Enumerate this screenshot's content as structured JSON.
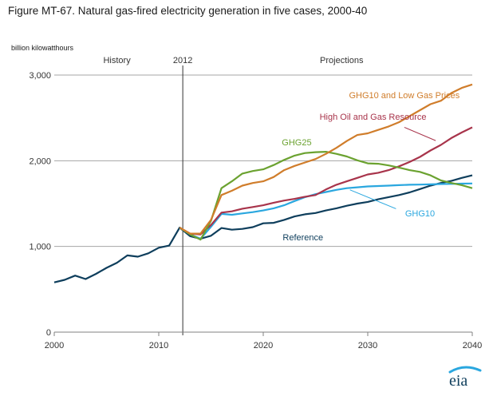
{
  "chart_data": {
    "type": "line",
    "title": "Figure MT-67. Natural  gas-fired electricity generation in  five cases, 2000-40",
    "ylabel": "billion kilowatthours",
    "xlabel": "",
    "xlim": [
      2000,
      2040
    ],
    "ylim": [
      0,
      3000
    ],
    "x_ticks": [
      2000,
      2010,
      2020,
      2030,
      2040
    ],
    "y_ticks": [
      0,
      1000,
      2000,
      3000
    ],
    "y_tick_labels": [
      "0",
      "1,000",
      "2,000",
      "3,000"
    ],
    "grid": "horizontal",
    "annotations": {
      "history": "History",
      "divider_year": "2012",
      "divider_x": 2012.3,
      "projections": "Projections"
    },
    "series": [
      {
        "name": "Reference",
        "color": "#0e3e5c",
        "x": [
          2000,
          2001,
          2002,
          2003,
          2004,
          2005,
          2006,
          2007,
          2008,
          2009,
          2010,
          2011,
          2012,
          2013,
          2014,
          2015,
          2016,
          2017,
          2018,
          2019,
          2020,
          2021,
          2022,
          2023,
          2024,
          2025,
          2026,
          2027,
          2028,
          2029,
          2030,
          2031,
          2032,
          2033,
          2034,
          2035,
          2036,
          2037,
          2038,
          2039,
          2040
        ],
        "values": [
          580,
          610,
          660,
          620,
          680,
          750,
          810,
          895,
          880,
          920,
          985,
          1010,
          1220,
          1120,
          1090,
          1125,
          1215,
          1195,
          1205,
          1225,
          1270,
          1275,
          1310,
          1350,
          1375,
          1390,
          1420,
          1445,
          1475,
          1500,
          1520,
          1550,
          1575,
          1600,
          1630,
          1670,
          1710,
          1740,
          1765,
          1800,
          1830
        ]
      },
      {
        "name": "GHG10",
        "color": "#2aa7df",
        "x": [
          2012,
          2013,
          2014,
          2015,
          2016,
          2017,
          2018,
          2019,
          2020,
          2021,
          2022,
          2023,
          2024,
          2025,
          2026,
          2027,
          2028,
          2029,
          2030,
          2031,
          2032,
          2033,
          2034,
          2035,
          2036,
          2037,
          2038,
          2039,
          2040
        ],
        "values": [
          1220,
          1140,
          1090,
          1230,
          1380,
          1370,
          1385,
          1400,
          1420,
          1445,
          1480,
          1530,
          1575,
          1610,
          1635,
          1660,
          1680,
          1690,
          1700,
          1705,
          1710,
          1715,
          1720,
          1722,
          1725,
          1728,
          1730,
          1733,
          1735
        ]
      },
      {
        "name": "High Oil and Gas Resource",
        "color": "#a8344b",
        "x": [
          2012,
          2013,
          2014,
          2015,
          2016,
          2017,
          2018,
          2019,
          2020,
          2021,
          2022,
          2023,
          2024,
          2025,
          2026,
          2027,
          2028,
          2029,
          2030,
          2031,
          2032,
          2033,
          2034,
          2035,
          2036,
          2037,
          2038,
          2039,
          2040
        ],
        "values": [
          1220,
          1150,
          1140,
          1250,
          1395,
          1410,
          1440,
          1460,
          1480,
          1510,
          1535,
          1555,
          1580,
          1600,
          1665,
          1720,
          1760,
          1800,
          1840,
          1860,
          1890,
          1935,
          1985,
          2045,
          2120,
          2185,
          2265,
          2330,
          2390
        ]
      },
      {
        "name": "GHG25",
        "color": "#6ba230",
        "x": [
          2012,
          2013,
          2014,
          2015,
          2016,
          2017,
          2018,
          2019,
          2020,
          2021,
          2022,
          2023,
          2024,
          2025,
          2026,
          2027,
          2028,
          2029,
          2030,
          2031,
          2032,
          2033,
          2034,
          2035,
          2036,
          2037,
          2038,
          2039,
          2040
        ],
        "values": [
          1220,
          1140,
          1080,
          1300,
          1680,
          1760,
          1850,
          1880,
          1900,
          1950,
          2010,
          2060,
          2090,
          2100,
          2105,
          2080,
          2050,
          2005,
          1970,
          1965,
          1945,
          1920,
          1890,
          1870,
          1830,
          1770,
          1740,
          1715,
          1680
        ]
      },
      {
        "name": "GHG10 and Low Gas Prices",
        "color": "#d07d2b",
        "x": [
          2012,
          2013,
          2014,
          2015,
          2016,
          2017,
          2018,
          2019,
          2020,
          2021,
          2022,
          2023,
          2024,
          2025,
          2026,
          2027,
          2028,
          2029,
          2030,
          2031,
          2032,
          2033,
          2034,
          2035,
          2036,
          2037,
          2038,
          2039,
          2040
        ],
        "values": [
          1220,
          1150,
          1150,
          1310,
          1600,
          1650,
          1710,
          1740,
          1760,
          1810,
          1890,
          1940,
          1980,
          2020,
          2080,
          2150,
          2230,
          2300,
          2320,
          2360,
          2400,
          2450,
          2520,
          2590,
          2660,
          2700,
          2790,
          2850,
          2890
        ]
      }
    ],
    "series_label_positions": {
      "Reference": "near series, mid projection",
      "GHG10": "right of series with leader line",
      "High Oil and Gas Resource": "above series with leader line",
      "GHG25": "above peak",
      "GHG10 and Low Gas Prices": "upper right"
    }
  },
  "logo": {
    "text": "eia"
  }
}
